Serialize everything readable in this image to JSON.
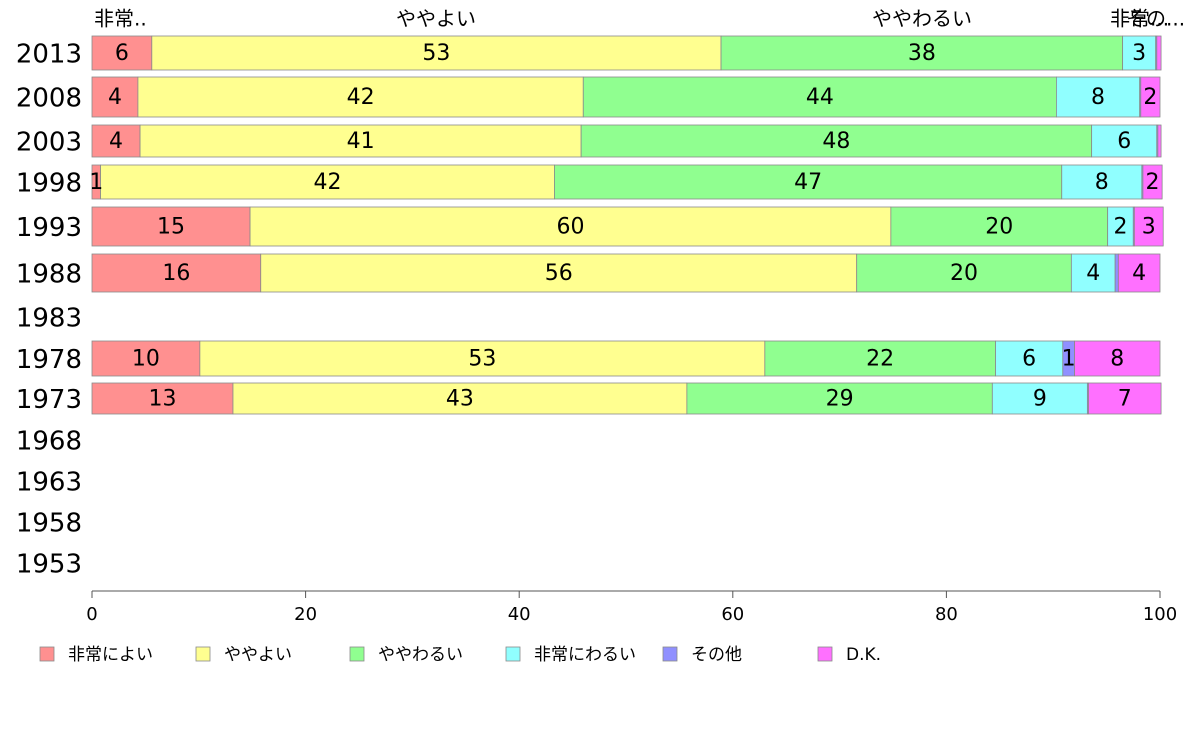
{
  "chart_data": {
    "type": "bar",
    "orientation": "horizontal",
    "stacked": true,
    "categories": [
      "2013",
      "2008",
      "2003",
      "1998",
      "1993",
      "1988",
      "1983",
      "1978",
      "1973",
      "1968",
      "1963",
      "1958",
      "1953"
    ],
    "series": [
      {
        "name": "非常によい",
        "color": "#ff9090",
        "values": [
          5.6,
          4.3,
          4.5,
          0.8,
          14.8,
          15.8,
          0,
          10.1,
          13.2,
          0,
          0,
          0,
          0
        ]
      },
      {
        "name": "ややよい",
        "color": "#ffff90",
        "values": [
          53.3,
          41.7,
          41.3,
          42.5,
          60.0,
          55.8,
          0,
          52.9,
          42.5,
          0,
          0,
          0,
          0
        ]
      },
      {
        "name": "ややわるい",
        "color": "#90ff90",
        "values": [
          37.6,
          44.3,
          47.8,
          47.5,
          20.3,
          20.1,
          0,
          21.6,
          28.6,
          0,
          0,
          0,
          0
        ]
      },
      {
        "name": "非常にわるい",
        "color": "#90ffff",
        "values": [
          3.1,
          7.8,
          6.1,
          7.5,
          2.4,
          4.1,
          0,
          6.3,
          8.9,
          0,
          0,
          0,
          0
        ]
      },
      {
        "name": "その他",
        "color": "#9090ff",
        "values": [
          0.1,
          0.1,
          0.1,
          0.1,
          0.1,
          0.3,
          0,
          1.1,
          0.1,
          0,
          0,
          0,
          0
        ]
      },
      {
        "name": "D.K.",
        "color": "#ff70ff",
        "values": [
          0.4,
          1.8,
          0.3,
          1.8,
          2.7,
          3.9,
          0,
          8.0,
          6.8,
          0,
          0,
          0,
          0
        ]
      }
    ],
    "bar_labels": [
      [
        "6",
        "53",
        "38",
        "3",
        "",
        ""
      ],
      [
        "4",
        "42",
        "44",
        "8",
        "",
        "2"
      ],
      [
        "4",
        "41",
        "48",
        "6",
        "",
        ""
      ],
      [
        "1",
        "42",
        "47",
        "8",
        "",
        "2"
      ],
      [
        "15",
        "60",
        "20",
        "2",
        "",
        "3"
      ],
      [
        "16",
        "56",
        "20",
        "4",
        "",
        "4"
      ],
      [
        "",
        "",
        "",
        "",
        "",
        ""
      ],
      [
        "10",
        "53",
        "22",
        "6",
        "1",
        "8"
      ],
      [
        "13",
        "43",
        "29",
        "9",
        "",
        "7"
      ],
      [
        "",
        "",
        "",
        "",
        "",
        ""
      ],
      [
        "",
        "",
        "",
        "",
        "",
        ""
      ],
      [
        "",
        "",
        "",
        "",
        "",
        ""
      ],
      [
        "",
        "",
        "",
        "",
        "",
        ""
      ]
    ],
    "top_labels": [
      "非常..",
      "ややよい",
      "ややわるい",
      "非常...",
      "その..."
    ],
    "xlim": [
      0,
      100
    ],
    "xticks": [
      "0",
      "20",
      "40",
      "60",
      "80",
      "100"
    ],
    "legend": [
      "非常によい",
      "ややよい",
      "ややわるい",
      "非常にわるい",
      "その他",
      "D.K."
    ],
    "legend_position": "bottom"
  }
}
